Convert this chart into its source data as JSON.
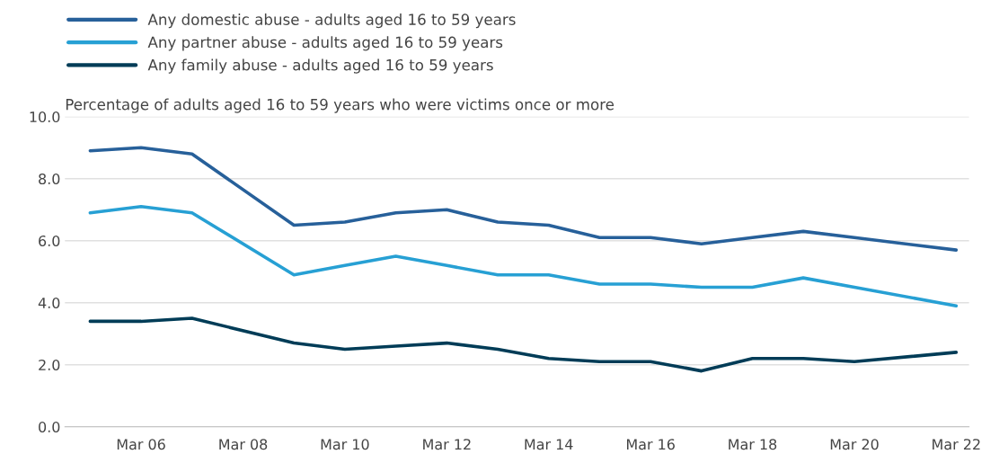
{
  "chart_data": {
    "type": "line",
    "ylabel": "Percentage of adults aged 16 to 59 years who were victims once or more",
    "series": [
      {
        "name": "Any domestic abuse - adults aged 16 to 59 years",
        "color": "#27609a",
        "x": [
          "2005-03",
          "2006-03",
          "2007-03",
          "2009-03",
          "2010-03",
          "2011-03",
          "2012-03",
          "2013-03",
          "2014-03",
          "2015-03",
          "2016-03",
          "2017-03",
          "2018-03",
          "2019-03",
          "2020-03",
          "2022-03"
        ],
        "values": [
          8.9,
          9.0,
          8.8,
          6.5,
          6.6,
          6.9,
          7.0,
          6.6,
          6.5,
          6.1,
          6.1,
          5.9,
          6.1,
          6.3,
          6.1,
          5.7
        ]
      },
      {
        "name": "Any partner abuse - adults aged 16 to 59 years",
        "color": "#27a0d4",
        "x": [
          "2005-03",
          "2006-03",
          "2007-03",
          "2009-03",
          "2010-03",
          "2011-03",
          "2012-03",
          "2013-03",
          "2014-03",
          "2015-03",
          "2016-03",
          "2017-03",
          "2018-03",
          "2019-03",
          "2020-03",
          "2022-03"
        ],
        "values": [
          6.9,
          7.1,
          6.9,
          4.9,
          5.2,
          5.5,
          5.2,
          4.9,
          4.9,
          4.6,
          4.6,
          4.5,
          4.5,
          4.8,
          4.5,
          3.9
        ]
      },
      {
        "name": "Any family abuse - adults aged 16 to 59 years",
        "color": "#003c57",
        "x": [
          "2005-03",
          "2006-03",
          "2007-03",
          "2009-03",
          "2010-03",
          "2011-03",
          "2012-03",
          "2013-03",
          "2014-03",
          "2015-03",
          "2016-03",
          "2017-03",
          "2018-03",
          "2019-03",
          "2020-03",
          "2022-03"
        ],
        "values": [
          3.4,
          3.4,
          3.5,
          2.7,
          2.5,
          2.6,
          2.7,
          2.5,
          2.2,
          2.1,
          2.1,
          1.8,
          2.2,
          2.2,
          2.1,
          2.4
        ]
      }
    ],
    "xlim": [
      "2004-09",
      "2022-06"
    ],
    "xticks": [
      {
        "value": "2006-03",
        "label": "Mar 06"
      },
      {
        "value": "2008-03",
        "label": "Mar 08"
      },
      {
        "value": "2010-03",
        "label": "Mar 10"
      },
      {
        "value": "2012-03",
        "label": "Mar 12"
      },
      {
        "value": "2014-03",
        "label": "Mar 14"
      },
      {
        "value": "2016-03",
        "label": "Mar 16"
      },
      {
        "value": "2018-03",
        "label": "Mar 18"
      },
      {
        "value": "2020-03",
        "label": "Mar 20"
      },
      {
        "value": "2022-03",
        "label": "Mar 22"
      }
    ],
    "ylim": [
      0,
      10
    ],
    "yticks": [
      {
        "value": 0,
        "label": "0.0"
      },
      {
        "value": 2,
        "label": "2.0"
      },
      {
        "value": 4,
        "label": "4.0"
      },
      {
        "value": 6,
        "label": "6.0"
      },
      {
        "value": 8,
        "label": "8.0"
      },
      {
        "value": 10,
        "label": "10.0"
      }
    ],
    "grid": "y",
    "legend": "top left",
    "marker": "none",
    "line_style": "solid"
  }
}
